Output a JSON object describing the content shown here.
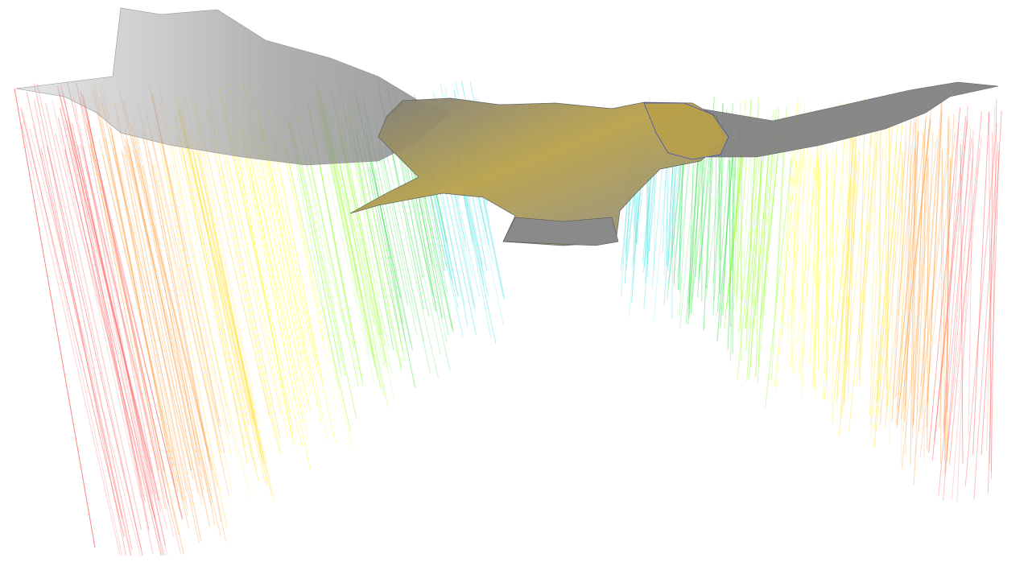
{
  "scene": {
    "subject": "bird-mesh",
    "background_color": "#ffffff",
    "mesh_colors": {
      "body_fill": "#8a8a8a",
      "body_highlight": "#c9a93f",
      "edge": "#555555",
      "wing_translucent": "#b0b0b0",
      "detail_blue": "#3344cc"
    },
    "ray_palette": [
      "#ff6060",
      "#ffa040",
      "#ffe030",
      "#ffff40",
      "#a0ff40",
      "#30e040",
      "#40e0e0"
    ]
  }
}
